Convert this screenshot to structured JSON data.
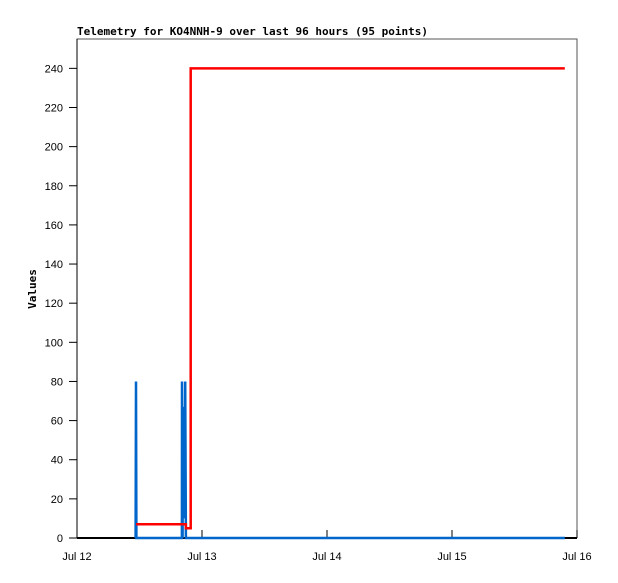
{
  "chart_data": {
    "type": "line",
    "title": "Telemetry for KO4NNH-9 over last 96 hours (95 points)",
    "xlabel": "",
    "ylabel": "Values",
    "xlim": [
      "Jul 12 00:00",
      "Jul 16 00:00"
    ],
    "ylim": [
      0,
      255
    ],
    "x_ticks": [
      "Jul 12",
      "Jul 13",
      "Jul 14",
      "Jul 15",
      "Jul 16"
    ],
    "y_ticks": [
      0,
      20,
      40,
      60,
      80,
      100,
      120,
      140,
      160,
      180,
      200,
      220,
      240
    ],
    "grid": false,
    "series": [
      {
        "color": "#0066cc",
        "points": [
          [
            "Jul 12 11:15",
            0
          ],
          [
            "Jul 12 11:20",
            80
          ],
          [
            "Jul 12 11:24",
            0
          ],
          [
            "Jul 12 20:08",
            0
          ],
          [
            "Jul 12 20:10",
            80
          ],
          [
            "Jul 12 20:16",
            0
          ],
          [
            "Jul 12 20:20",
            67
          ],
          [
            "Jul 12 20:26",
            10
          ],
          [
            "Jul 12 20:32",
            40
          ],
          [
            "Jul 12 20:40",
            14
          ],
          [
            "Jul 12 20:46",
            80
          ],
          [
            "Jul 12 20:54",
            0
          ],
          [
            "Jul 15 21:40",
            0
          ]
        ]
      },
      {
        "color": "#ff0000",
        "points": [
          [
            "Jul 12 11:20",
            7
          ],
          [
            "Jul 12 20:55",
            7
          ],
          [
            "Jul 12 20:55",
            5
          ],
          [
            "Jul 12 21:50",
            5
          ],
          [
            "Jul 12 21:50",
            240
          ],
          [
            "Jul 15 21:40",
            240
          ]
        ]
      }
    ]
  }
}
